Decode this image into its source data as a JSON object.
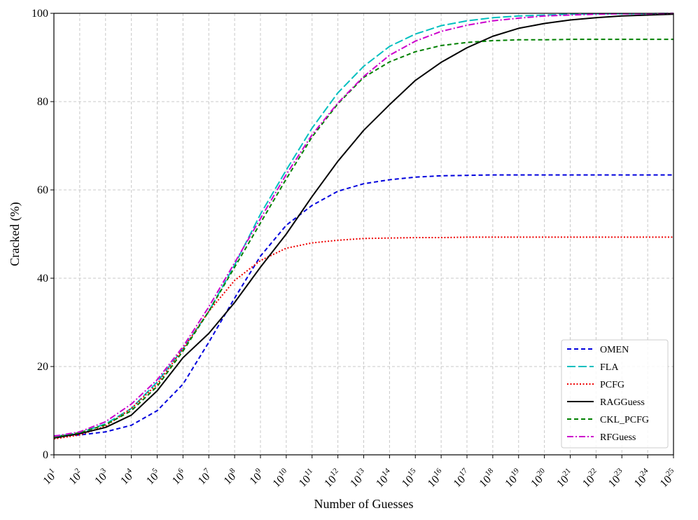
{
  "chart_data": {
    "type": "line",
    "title": "",
    "xlabel": "Number of Guesses",
    "ylabel": "Cracked (%)",
    "x_scale": "log10",
    "x": [
      10.0,
      100.0,
      1000.0,
      10000.0,
      100000.0,
      1000000.0,
      10000000.0,
      100000000.0,
      1000000000.0,
      10000000000.0,
      100000000000.0,
      1000000000000.0,
      10000000000000.0,
      100000000000000.0,
      1000000000000000.0,
      1e+16,
      1e+17,
      1e+18,
      1e+19,
      1e+20,
      1e+21,
      1e+22,
      1e+23,
      1e+24,
      1e+25
    ],
    "x_tick_labels": [
      {
        "base": "10",
        "exp": "1"
      },
      {
        "base": "10",
        "exp": "2"
      },
      {
        "base": "10",
        "exp": "3"
      },
      {
        "base": "10",
        "exp": "4"
      },
      {
        "base": "10",
        "exp": "5"
      },
      {
        "base": "10",
        "exp": "6"
      },
      {
        "base": "10",
        "exp": "7"
      },
      {
        "base": "10",
        "exp": "8"
      },
      {
        "base": "10",
        "exp": "9"
      },
      {
        "base": "10",
        "exp": "10"
      },
      {
        "base": "10",
        "exp": "11"
      },
      {
        "base": "10",
        "exp": "12"
      },
      {
        "base": "10",
        "exp": "13"
      },
      {
        "base": "10",
        "exp": "14"
      },
      {
        "base": "10",
        "exp": "15"
      },
      {
        "base": "10",
        "exp": "16"
      },
      {
        "base": "10",
        "exp": "17"
      },
      {
        "base": "10",
        "exp": "18"
      },
      {
        "base": "10",
        "exp": "19"
      },
      {
        "base": "10",
        "exp": "20"
      },
      {
        "base": "10",
        "exp": "21"
      },
      {
        "base": "10",
        "exp": "22"
      },
      {
        "base": "10",
        "exp": "23"
      },
      {
        "base": "10",
        "exp": "24"
      },
      {
        "base": "10",
        "exp": "25"
      }
    ],
    "ylim": [
      0,
      100
    ],
    "y_ticks": [
      0,
      20,
      40,
      60,
      80,
      100
    ],
    "grid": true,
    "legend_position": "lower-right",
    "series": [
      {
        "name": "OMEN",
        "color": "#0000dd",
        "dash": "dashed",
        "values": [
          4.3,
          4.5,
          5.2,
          6.7,
          10.0,
          16.0,
          25.5,
          35.5,
          45.0,
          52.0,
          56.5,
          59.7,
          61.4,
          62.3,
          62.9,
          63.2,
          63.3,
          63.4,
          63.4,
          63.4,
          63.4,
          63.4,
          63.4,
          63.4,
          63.4
        ]
      },
      {
        "name": "FLA",
        "color": "#00bfbf",
        "dash": "long-dashed",
        "values": [
          4.1,
          5.0,
          7.0,
          10.5,
          16.5,
          24.0,
          32.5,
          43.0,
          54.5,
          64.5,
          74.0,
          82.0,
          88.0,
          92.5,
          95.3,
          97.2,
          98.3,
          99.0,
          99.4,
          99.6,
          99.8,
          99.9,
          99.9,
          99.9,
          100.0
        ]
      },
      {
        "name": "PCFG",
        "color": "#ee0000",
        "dash": "dotted",
        "values": [
          3.6,
          4.5,
          6.5,
          10.5,
          16.0,
          24.0,
          32.5,
          39.5,
          44.0,
          46.8,
          48.0,
          48.6,
          49.0,
          49.1,
          49.2,
          49.2,
          49.3,
          49.3,
          49.3,
          49.3,
          49.3,
          49.3,
          49.3,
          49.3,
          49.3
        ]
      },
      {
        "name": "RAGGuess",
        "color": "#000000",
        "dash": "solid",
        "values": [
          3.8,
          4.8,
          6.2,
          9.0,
          14.5,
          22.0,
          27.5,
          34.5,
          42.5,
          50.0,
          58.5,
          66.5,
          73.5,
          79.3,
          84.8,
          88.9,
          92.2,
          94.8,
          96.6,
          97.7,
          98.5,
          99.0,
          99.4,
          99.6,
          99.8
        ]
      },
      {
        "name": "CKL_PCFG",
        "color": "#008000",
        "dash": "dashed",
        "values": [
          4.0,
          5.0,
          6.8,
          10.0,
          15.5,
          23.5,
          32.5,
          42.5,
          52.5,
          62.5,
          72.0,
          79.5,
          85.5,
          89.0,
          91.3,
          92.7,
          93.4,
          93.8,
          94.0,
          94.0,
          94.1,
          94.1,
          94.1,
          94.1,
          94.1
        ]
      },
      {
        "name": "RFGuess",
        "color": "#cc00cc",
        "dash": "dash-dot",
        "values": [
          4.2,
          5.2,
          7.5,
          11.5,
          17.0,
          24.5,
          33.5,
          43.5,
          53.5,
          63.5,
          72.5,
          79.7,
          85.7,
          90.5,
          93.7,
          95.9,
          97.3,
          98.3,
          98.9,
          99.4,
          99.6,
          99.8,
          99.9,
          99.9,
          100.0
        ]
      }
    ]
  }
}
